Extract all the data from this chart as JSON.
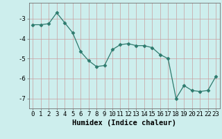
{
  "x": [
    0,
    1,
    2,
    3,
    4,
    5,
    6,
    7,
    8,
    9,
    10,
    11,
    12,
    13,
    14,
    15,
    16,
    17,
    18,
    19,
    20,
    21,
    22,
    23
  ],
  "y": [
    -3.3,
    -3.3,
    -3.25,
    -2.7,
    -3.2,
    -3.7,
    -4.65,
    -5.1,
    -5.4,
    -5.35,
    -4.55,
    -4.3,
    -4.25,
    -4.35,
    -4.35,
    -4.45,
    -4.8,
    -5.0,
    -7.0,
    -6.35,
    -6.6,
    -6.65,
    -6.6,
    -5.9
  ],
  "line_color": "#2d7a6d",
  "marker": "D",
  "marker_size": 2.5,
  "xlabel": "Humidex (Indice chaleur)",
  "xlim": [
    -0.5,
    23.5
  ],
  "ylim": [
    -7.5,
    -2.2
  ],
  "yticks": [
    -7,
    -6,
    -5,
    -4,
    -3
  ],
  "xticks": [
    0,
    1,
    2,
    3,
    4,
    5,
    6,
    7,
    8,
    9,
    10,
    11,
    12,
    13,
    14,
    15,
    16,
    17,
    18,
    19,
    20,
    21,
    22,
    23
  ],
  "bg_color": "#cdeeed",
  "grid_color": "#c8a0a0",
  "tick_fontsize": 6.5,
  "label_fontsize": 7.5
}
